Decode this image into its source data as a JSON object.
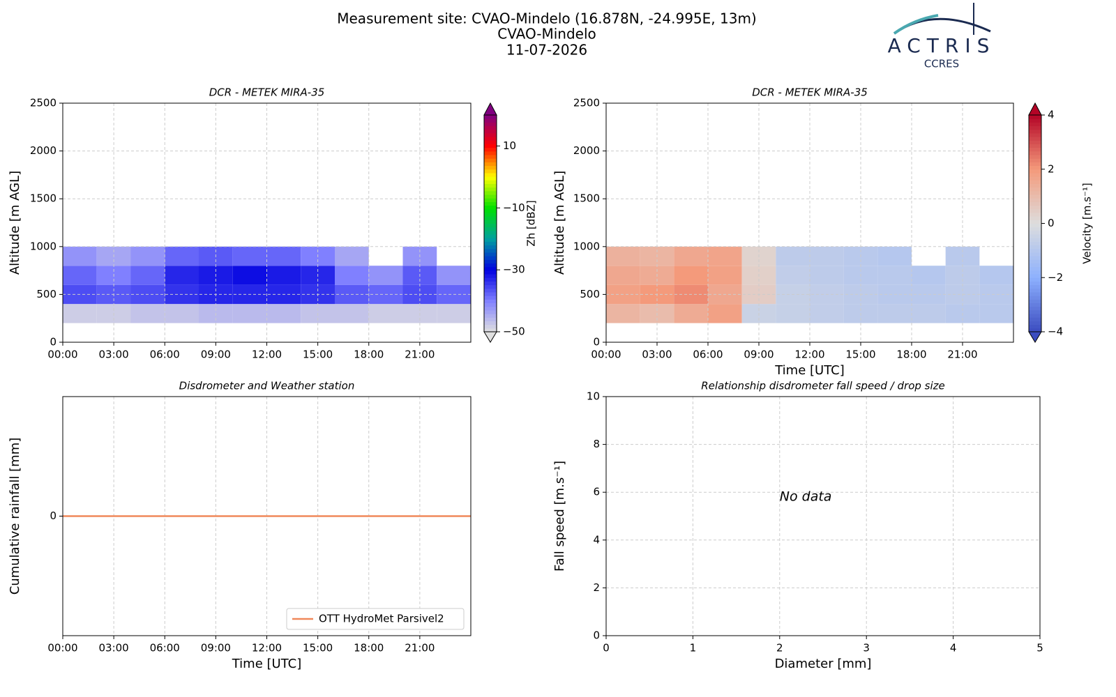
{
  "header": {
    "lines": [
      "Measurement site: CVAO-Mindelo (16.878N, -24.995E, 13m)",
      "CVAO-Mindelo",
      "11-07-2026"
    ]
  },
  "logo": {
    "title": "ACTRIS",
    "subtitle": "CCRES"
  },
  "chart_data": [
    {
      "type": "heatmap",
      "title": "DCR - METEK MIRA-35",
      "ylabel": "Altitude [m AGL]",
      "xlim": [
        0,
        24
      ],
      "xticks": [
        {
          "value": 0,
          "label": "00:00"
        },
        {
          "value": 3,
          "label": "03:00"
        },
        {
          "value": 6,
          "label": "06:00"
        },
        {
          "value": 9,
          "label": "09:00"
        },
        {
          "value": 12,
          "label": "12:00"
        },
        {
          "value": 15,
          "label": "15:00"
        },
        {
          "value": 18,
          "label": "18:00"
        },
        {
          "value": 21,
          "label": "21:00"
        }
      ],
      "ylim": [
        0,
        2500
      ],
      "yticks": [
        0,
        500,
        1000,
        1500,
        2000,
        2500
      ],
      "grid": true,
      "xbins": [
        0,
        2,
        4,
        6,
        8,
        10,
        12,
        14,
        16,
        18,
        20,
        22,
        24
      ],
      "ybins": [
        200,
        400,
        600,
        800,
        1000
      ],
      "z": [
        [
          -48,
          -48,
          -47,
          -47,
          -46,
          -46,
          -46,
          -47,
          -47,
          -48,
          -48,
          -48
        ],
        [
          -36,
          -37,
          -36,
          -34,
          -33,
          -33,
          -33,
          -34,
          -37,
          -38,
          -36,
          -38
        ],
        [
          -38,
          -40,
          -38,
          -33,
          -32,
          -31,
          -32,
          -33,
          -40,
          -42,
          -37,
          -42
        ],
        [
          -42,
          -44,
          -42,
          -38,
          -37,
          -38,
          -38,
          -40,
          -44,
          null,
          -42,
          null
        ]
      ],
      "colorbar": {
        "label": "Zh [dBZ]",
        "lim": [
          -50,
          20
        ],
        "ticks": [
          {
            "value": -50,
            "label": "−50"
          },
          {
            "value": -30,
            "label": "−30"
          },
          {
            "value": -10,
            "label": "−10"
          },
          10
        ],
        "colors": [
          "#e0e0e0",
          "#8080ff",
          "#0000e0",
          "#00a0a0",
          "#00e000",
          "#ffff00",
          "#ff0000",
          "#800080"
        ]
      }
    },
    {
      "type": "heatmap",
      "title": "DCR - METEK MIRA-35",
      "xlabel": "Time [UTC]",
      "ylabel": "Altitude [m AGL]",
      "xlim": [
        0,
        24
      ],
      "xticks": [
        {
          "value": 0,
          "label": "00:00"
        },
        {
          "value": 3,
          "label": "03:00"
        },
        {
          "value": 6,
          "label": "06:00"
        },
        {
          "value": 9,
          "label": "09:00"
        },
        {
          "value": 12,
          "label": "12:00"
        },
        {
          "value": 15,
          "label": "15:00"
        },
        {
          "value": 18,
          "label": "18:00"
        },
        {
          "value": 21,
          "label": "21:00"
        }
      ],
      "ylim": [
        0,
        2500
      ],
      "yticks": [
        0,
        500,
        1000,
        1500,
        2000,
        2500
      ],
      "grid": true,
      "xbins": [
        0,
        2,
        4,
        6,
        8,
        10,
        12,
        14,
        16,
        18,
        20,
        22,
        24
      ],
      "ybins": [
        200,
        400,
        600,
        800,
        1000
      ],
      "z": [
        [
          1.2,
          1.0,
          1.5,
          1.8,
          -0.5,
          -0.6,
          -0.7,
          -0.8,
          -0.8,
          -0.8,
          -0.9,
          -0.9
        ],
        [
          1.8,
          2.0,
          2.2,
          1.6,
          0.5,
          -0.6,
          -0.7,
          -0.8,
          -0.9,
          -0.9,
          -0.8,
          -0.9
        ],
        [
          1.6,
          1.5,
          2.0,
          1.8,
          0.4,
          -0.7,
          -0.8,
          -0.9,
          -0.9,
          -1.0,
          -0.8,
          -1.0
        ],
        [
          1.3,
          1.2,
          1.6,
          1.7,
          0.3,
          -0.8,
          -0.8,
          -0.9,
          -1.0,
          null,
          -0.9,
          null
        ]
      ],
      "colorbar": {
        "label": "Velocity [m.s⁻¹]",
        "lim": [
          -4,
          4
        ],
        "ticks": [
          {
            "value": -4,
            "label": "−4"
          },
          {
            "value": -2,
            "label": "−2"
          },
          0,
          2,
          4
        ],
        "colors": [
          "#3b4cc0",
          "#8db0fe",
          "#dddddd",
          "#f49a7b",
          "#b40426"
        ]
      }
    },
    {
      "type": "line",
      "title": "Disdrometer and Weather station",
      "xlabel": "Time [UTC]",
      "ylabel": "Cumulative rainfall [mm]",
      "xlim": [
        0,
        24
      ],
      "xticks": [
        {
          "value": 0,
          "label": "00:00"
        },
        {
          "value": 3,
          "label": "03:00"
        },
        {
          "value": 6,
          "label": "06:00"
        },
        {
          "value": 9,
          "label": "09:00"
        },
        {
          "value": 12,
          "label": "12:00"
        },
        {
          "value": 15,
          "label": "15:00"
        },
        {
          "value": 18,
          "label": "18:00"
        },
        {
          "value": 21,
          "label": "21:00"
        }
      ],
      "ylim": [
        -0.055,
        0.055
      ],
      "yticks": [
        0
      ],
      "grid": true,
      "legend": "lower right",
      "x": [
        0,
        24
      ],
      "series": [
        {
          "name": "OTT HydroMet Parsivel2",
          "color": "#f0885a",
          "values": [
            0,
            0
          ]
        }
      ]
    },
    {
      "type": "scatter",
      "title": "Relationship disdrometer fall speed / drop size",
      "xlabel": "Diameter [mm]",
      "ylabel": "Fall speed [m.s⁻¹]",
      "xlim": [
        0,
        5
      ],
      "xticks": [
        0,
        1,
        2,
        3,
        4,
        5
      ],
      "ylim": [
        0,
        10
      ],
      "yticks": [
        0,
        2,
        4,
        6,
        8,
        10
      ],
      "grid": true,
      "x": [],
      "values": [],
      "annotation": "No data"
    }
  ]
}
